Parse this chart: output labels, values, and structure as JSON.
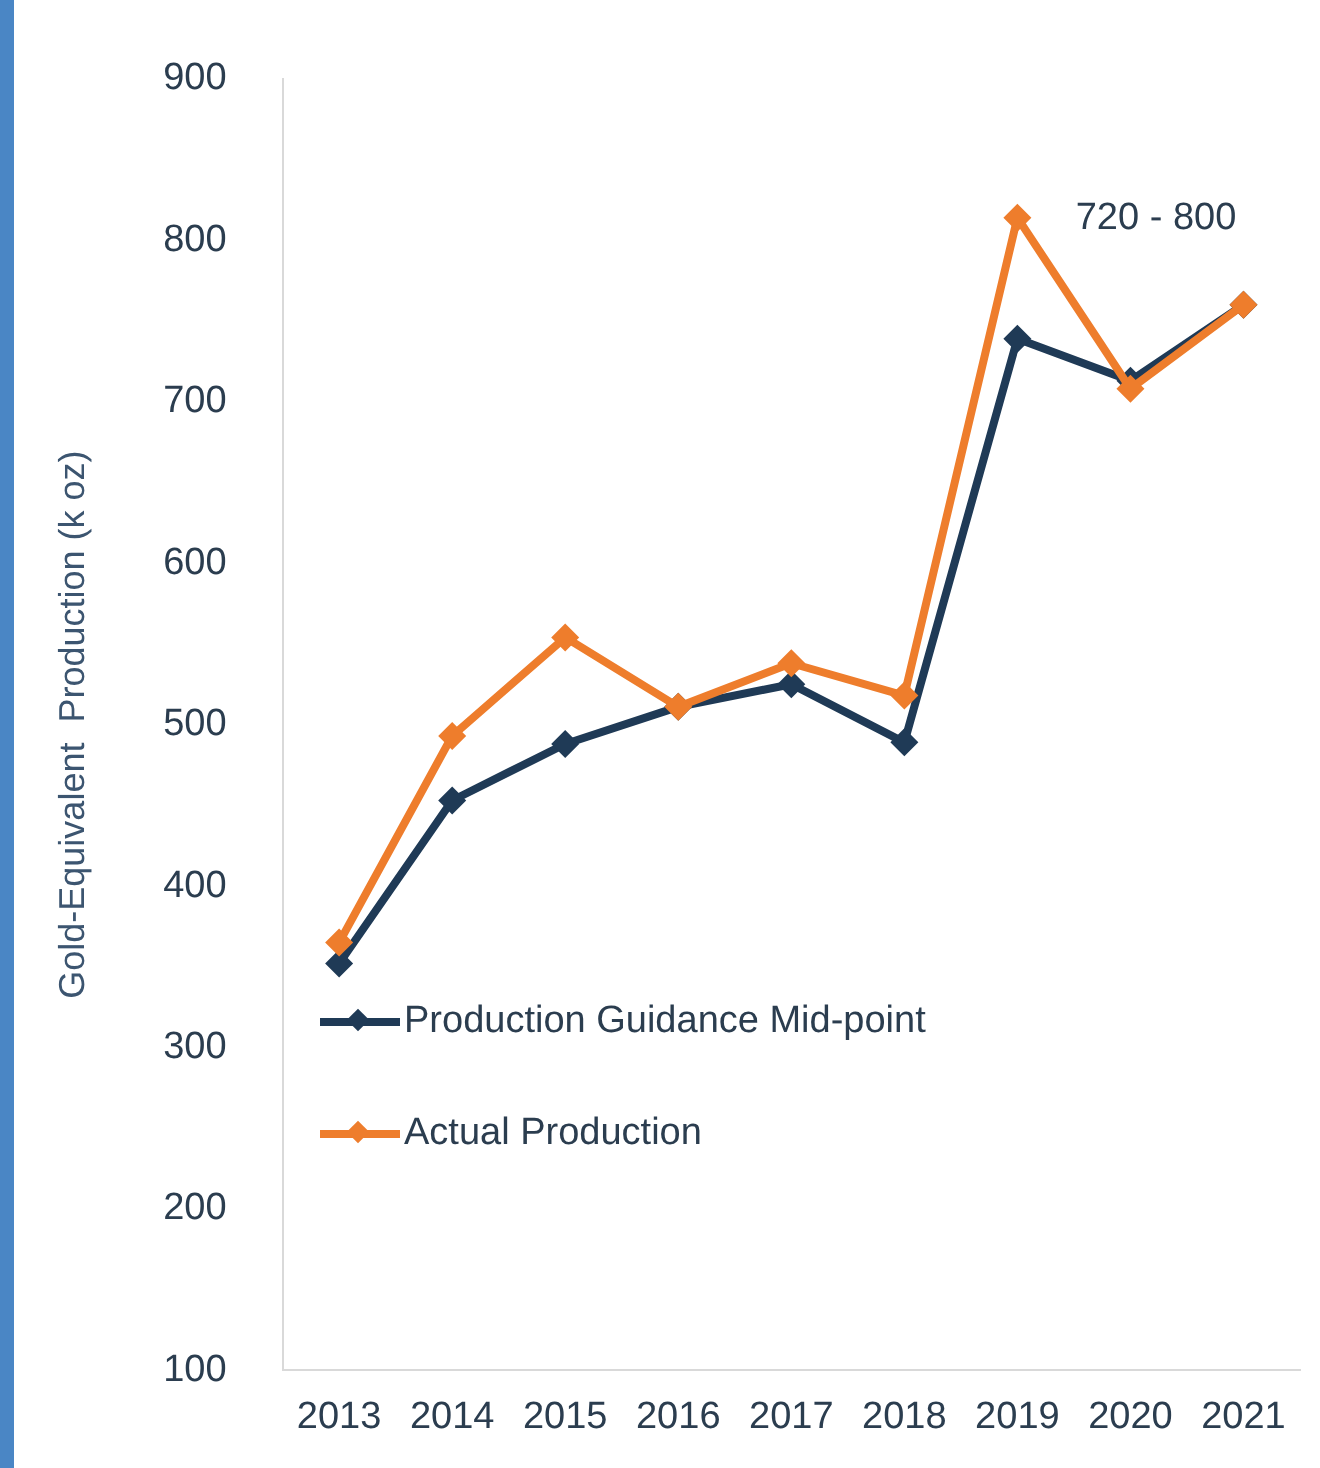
{
  "chart_data": {
    "type": "line",
    "ylabel": "Gold-Equivalent  Production (k oz)",
    "categories": [
      "2013",
      "2014",
      "2015",
      "2016",
      "2017",
      "2018",
      "2019",
      "2020",
      "2021"
    ],
    "series": [
      {
        "name": "Production Guidance Mid-point",
        "color": "#1f3a56",
        "values": [
          352,
          453,
          488,
          511,
          525,
          489,
          739,
          713,
          760
        ]
      },
      {
        "name": "Actual Production",
        "color": "#ee7d2c",
        "values": [
          365,
          493,
          554,
          511,
          538,
          518,
          814,
          708,
          760
        ]
      }
    ],
    "ylim": [
      100,
      900
    ],
    "yticks": [
      100,
      200,
      300,
      400,
      500,
      600,
      700,
      800,
      900
    ],
    "grid": false,
    "legend": "bottom",
    "marker": "diamond",
    "line_style": "solid",
    "annotations": [
      "720 - 800"
    ]
  }
}
